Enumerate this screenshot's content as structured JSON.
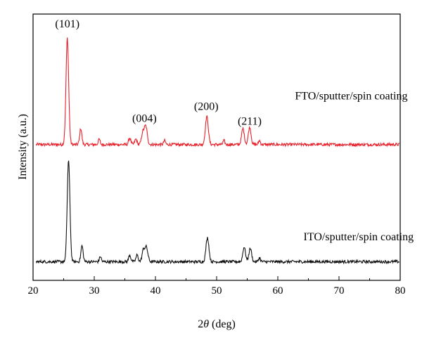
{
  "chart_data": {
    "type": "line",
    "xlabel_prefix": "2",
    "xlabel_symbol": "θ",
    "xlabel_suffix": " (deg)",
    "ylabel": "Intensity (a.u.)",
    "xlim": [
      20,
      80
    ],
    "ylim": [
      0,
      100
    ],
    "x_ticks": [
      "20",
      "30",
      "40",
      "50",
      "60",
      "70",
      "80"
    ],
    "grid": false,
    "series": [
      {
        "name": "FTO/sputter/spin coating",
        "color": "#e8202a",
        "baseline": 51,
        "peaks": [
          {
            "x": 25.6,
            "h": 40,
            "w": 0.22
          },
          {
            "x": 27.8,
            "h": 6,
            "w": 0.18
          },
          {
            "x": 30.8,
            "h": 2,
            "w": 0.15
          },
          {
            "x": 35.8,
            "h": 2.5,
            "w": 0.18
          },
          {
            "x": 36.8,
            "h": 2,
            "w": 0.18
          },
          {
            "x": 37.9,
            "h": 4,
            "w": 0.2
          },
          {
            "x": 38.4,
            "h": 7,
            "w": 0.25
          },
          {
            "x": 41.5,
            "h": 1.5,
            "w": 0.15
          },
          {
            "x": 48.4,
            "h": 10.5,
            "w": 0.24
          },
          {
            "x": 51.2,
            "h": 1.5,
            "w": 0.15
          },
          {
            "x": 54.3,
            "h": 6,
            "w": 0.22
          },
          {
            "x": 55.4,
            "h": 6.5,
            "w": 0.22
          },
          {
            "x": 57.0,
            "h": 1.5,
            "w": 0.15
          }
        ]
      },
      {
        "name": "ITO/sputter/spin coating",
        "color": "#111111",
        "baseline": 7,
        "peaks": [
          {
            "x": 25.8,
            "h": 38,
            "w": 0.22
          },
          {
            "x": 28.0,
            "h": 6,
            "w": 0.18
          },
          {
            "x": 31.0,
            "h": 2,
            "w": 0.15
          },
          {
            "x": 35.8,
            "h": 2.5,
            "w": 0.18
          },
          {
            "x": 37.0,
            "h": 2.5,
            "w": 0.18
          },
          {
            "x": 38.0,
            "h": 4,
            "w": 0.2
          },
          {
            "x": 38.5,
            "h": 5.5,
            "w": 0.25
          },
          {
            "x": 48.5,
            "h": 9,
            "w": 0.24
          },
          {
            "x": 54.5,
            "h": 5.5,
            "w": 0.22
          },
          {
            "x": 55.5,
            "h": 5,
            "w": 0.22
          },
          {
            "x": 57.0,
            "h": 1.5,
            "w": 0.15
          }
        ]
      }
    ],
    "annotations": [
      {
        "text": "(101)",
        "x": 25.6,
        "y": 95
      },
      {
        "text": "(004)",
        "x": 38.2,
        "y": 59.5
      },
      {
        "text": "(200)",
        "x": 48.3,
        "y": 64
      },
      {
        "text": "(211)",
        "x": 55.4,
        "y": 58.5
      }
    ],
    "series_labels": [
      {
        "text": "FTO/sputter/spin coating",
        "x": 72,
        "y": 68
      },
      {
        "text": "ITO/sputter/spin coating",
        "x": 73.2,
        "y": 15
      }
    ]
  }
}
